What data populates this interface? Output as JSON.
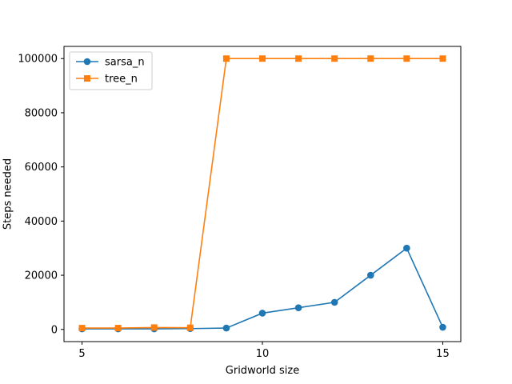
{
  "chart_data": {
    "type": "line",
    "xlabel": "Gridworld size",
    "ylabel": "Steps needed",
    "xlim": [
      4.5,
      15.5
    ],
    "ylim": [
      -4500,
      104500
    ],
    "xticks": [
      5,
      10,
      15
    ],
    "yticks": [
      0,
      20000,
      40000,
      60000,
      80000,
      100000
    ],
    "grid": false,
    "legend_position": "top-left",
    "series": [
      {
        "name": "sarsa_n",
        "color": "#1f77b4",
        "marker": "circle",
        "x": [
          5,
          6,
          7,
          8,
          9,
          10,
          11,
          12,
          13,
          14,
          15
        ],
        "y": [
          200,
          200,
          200,
          300,
          500,
          6000,
          8000,
          10000,
          20000,
          30000,
          800
        ]
      },
      {
        "name": "tree_n",
        "color": "#ff7f0e",
        "marker": "square",
        "x": [
          5,
          6,
          7,
          8,
          9,
          10,
          11,
          12,
          13,
          14,
          15
        ],
        "y": [
          500,
          500,
          700,
          600,
          100000,
          100000,
          100000,
          100000,
          100000,
          100000,
          100000
        ]
      }
    ]
  }
}
